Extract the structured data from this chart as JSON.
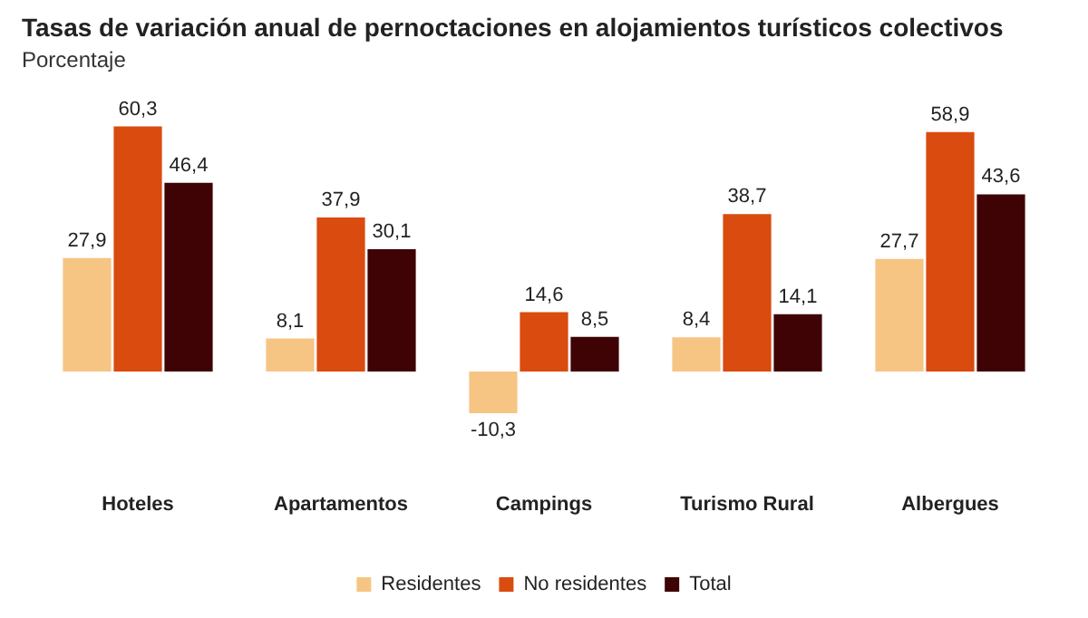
{
  "chart_data": {
    "type": "bar",
    "title": "Tasas de variación anual de pernoctaciones en alojamientos turísticos colectivos",
    "subtitle": "Porcentaje",
    "categories": [
      "Hoteles",
      "Apartamentos",
      "Campings",
      "Turismo Rural",
      "Albergues"
    ],
    "series": [
      {
        "name": "Residentes",
        "color": "#f6c584",
        "values": [
          27.9,
          8.1,
          -10.3,
          8.4,
          27.7
        ],
        "value_labels": [
          "27,9",
          "8,1",
          "-10,3",
          "8,4",
          "27,7"
        ]
      },
      {
        "name": "No residentes",
        "color": "#da4b0f",
        "values": [
          60.3,
          37.9,
          14.6,
          38.7,
          58.9
        ],
        "value_labels": [
          "60,3",
          "37,9",
          "14,6",
          "38,7",
          "58,9"
        ]
      },
      {
        "name": "Total",
        "color": "#3f0306",
        "values": [
          46.4,
          30.1,
          8.5,
          14.1,
          43.6
        ],
        "value_labels": [
          "46,4",
          "30,1",
          "8,5",
          "14,1",
          "43,6"
        ]
      }
    ],
    "legend": "bottom"
  }
}
